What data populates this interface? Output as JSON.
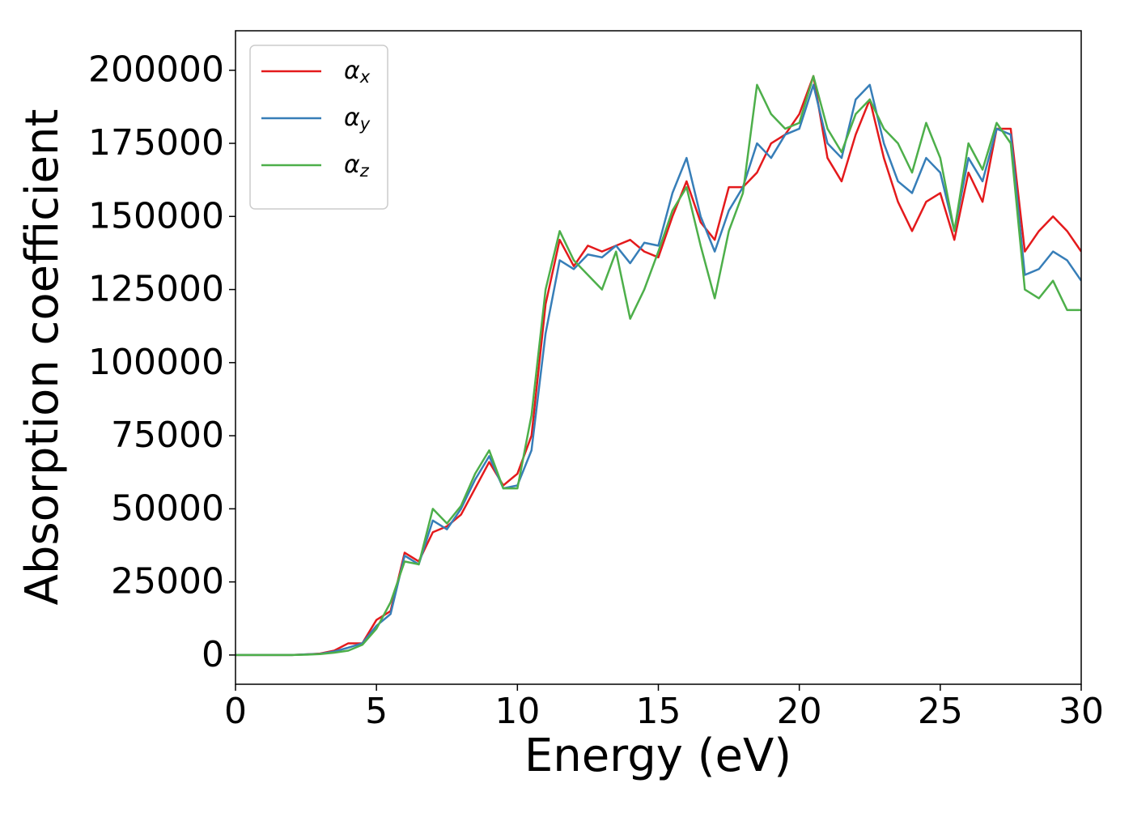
{
  "chart_data": {
    "type": "line",
    "xlabel": "Energy (eV)",
    "ylabel": "Absorption coefficient",
    "x": [
      0,
      0.5,
      1,
      1.5,
      2,
      2.5,
      3,
      3.5,
      4,
      4.5,
      5,
      5.5,
      6,
      6.5,
      7,
      7.5,
      8,
      8.5,
      9,
      9.5,
      10,
      10.5,
      11,
      11.5,
      12,
      12.5,
      13,
      13.5,
      14,
      14.5,
      15,
      15.5,
      16,
      16.5,
      17,
      17.5,
      18,
      18.5,
      19,
      19.5,
      20,
      20.5,
      21,
      21.5,
      22,
      22.5,
      23,
      23.5,
      24,
      24.5,
      25,
      25.5,
      26,
      26.5,
      27,
      27.5,
      28,
      28.5,
      29,
      29.5,
      30
    ],
    "series": [
      {
        "name": "αx",
        "color": "#e41a1c",
        "values": [
          0,
          0,
          0,
          0,
          0,
          200,
          500,
          1500,
          4000,
          4000,
          12000,
          15000,
          35000,
          32000,
          42000,
          44000,
          48000,
          57000,
          66000,
          58000,
          62000,
          75000,
          120000,
          142000,
          133000,
          140000,
          138000,
          140000,
          142000,
          138000,
          136000,
          150000,
          162000,
          148000,
          142000,
          160000,
          160000,
          165000,
          175000,
          178000,
          185000,
          198000,
          170000,
          162000,
          178000,
          190000,
          170000,
          155000,
          145000,
          155000,
          158000,
          142000,
          165000,
          155000,
          180000,
          180000,
          138000,
          145000,
          150000,
          145000,
          138000
        ]
      },
      {
        "name": "αy",
        "color": "#377eb8",
        "values": [
          0,
          0,
          0,
          0,
          0,
          200,
          400,
          1200,
          2500,
          4000,
          10000,
          14000,
          34000,
          31000,
          46000,
          43000,
          50000,
          60000,
          68000,
          57000,
          58000,
          70000,
          110000,
          135000,
          132000,
          137000,
          136000,
          140000,
          134000,
          141000,
          140000,
          158000,
          170000,
          150000,
          138000,
          152000,
          160000,
          175000,
          170000,
          178000,
          180000,
          195000,
          175000,
          170000,
          190000,
          195000,
          175000,
          162000,
          158000,
          170000,
          165000,
          145000,
          170000,
          162000,
          180000,
          178000,
          130000,
          132000,
          138000,
          135000,
          128000
        ]
      },
      {
        "name": "αz",
        "color": "#4daf4a",
        "values": [
          0,
          0,
          0,
          0,
          0,
          100,
          300,
          800,
          1500,
          3500,
          9000,
          18000,
          32000,
          31000,
          50000,
          45000,
          51000,
          62000,
          70000,
          57000,
          57000,
          82000,
          125000,
          145000,
          135000,
          130000,
          125000,
          138000,
          115000,
          125000,
          138000,
          152000,
          160000,
          140000,
          122000,
          145000,
          158000,
          195000,
          185000,
          180000,
          182000,
          198000,
          180000,
          172000,
          185000,
          190000,
          180000,
          175000,
          165000,
          182000,
          170000,
          145000,
          175000,
          166000,
          182000,
          175000,
          125000,
          122000,
          128000,
          118000,
          118000
        ]
      }
    ],
    "xlim": [
      0,
      30
    ],
    "xticks": [
      0,
      5,
      10,
      15,
      20,
      25,
      30
    ],
    "ylim": [
      -10000,
      213500
    ],
    "yticks": [
      0,
      25000,
      50000,
      75000,
      100000,
      125000,
      150000,
      175000,
      200000
    ],
    "grid": false,
    "legend": "upper left"
  }
}
